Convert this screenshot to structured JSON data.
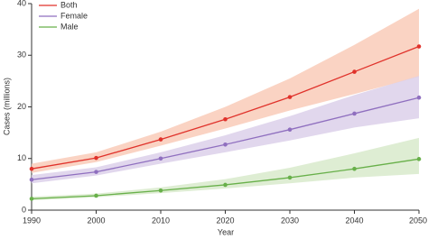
{
  "chart_data": {
    "type": "line",
    "x": [
      1990,
      2000,
      2010,
      2020,
      2030,
      2040,
      2050
    ],
    "xlim": [
      1990,
      2050
    ],
    "xticks": [
      1990,
      2000,
      2010,
      2020,
      2030,
      2040,
      2050
    ],
    "ylim": [
      0,
      40
    ],
    "yticks": [
      0,
      10,
      20,
      30,
      40
    ],
    "xlabel": "Year",
    "ylabel": "Cases (millions)",
    "legend": "upper left",
    "grid": false,
    "series": [
      {
        "name": "Both",
        "color": "#e0322b",
        "band_color": "#f9cbb8",
        "values": [
          8.0,
          10.1,
          13.7,
          17.6,
          21.9,
          26.8,
          31.7
        ],
        "lower": [
          7.2,
          9.3,
          12.5,
          15.8,
          19.3,
          22.5,
          25.8
        ],
        "upper": [
          9.0,
          11.2,
          15.2,
          20.0,
          25.5,
          32.0,
          39.0
        ]
      },
      {
        "name": "Female",
        "color": "#8f6fbf",
        "band_color": "#dcd0ea",
        "values": [
          5.9,
          7.4,
          10.0,
          12.7,
          15.6,
          18.7,
          21.8
        ],
        "lower": [
          5.2,
          6.7,
          9.0,
          11.2,
          13.5,
          16.0,
          17.8
        ],
        "upper": [
          6.8,
          8.3,
          11.2,
          14.5,
          18.2,
          22.3,
          26.0
        ]
      },
      {
        "name": "Male",
        "color": "#68b04a",
        "band_color": "#d8eacb",
        "values": [
          2.2,
          2.8,
          3.8,
          4.9,
          6.3,
          8.0,
          9.9
        ],
        "lower": [
          1.9,
          2.5,
          3.3,
          4.2,
          5.2,
          6.3,
          7.0
        ],
        "upper": [
          2.6,
          3.2,
          4.4,
          6.0,
          8.2,
          11.0,
          14.0
        ]
      }
    ]
  }
}
